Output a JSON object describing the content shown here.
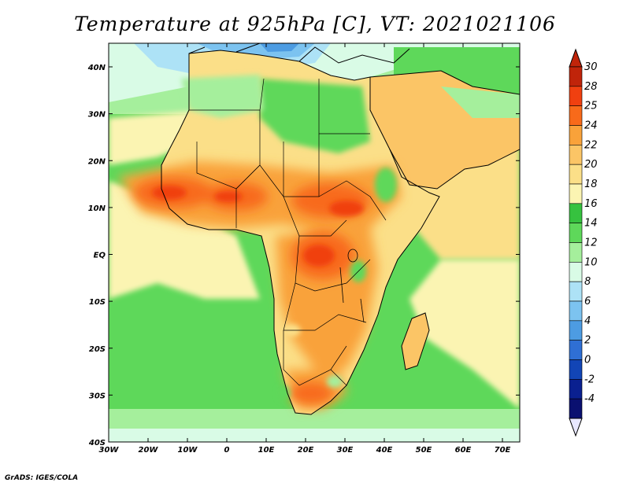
{
  "title": "Temperature at 925hPa [C], VT: 2021021106",
  "credit": "GrADS: IGES/COLA",
  "lon_ticks": [
    "30W",
    "20W",
    "10W",
    "0",
    "10E",
    "20E",
    "30E",
    "40E",
    "50E",
    "60E",
    "70E"
  ],
  "lat_ticks": [
    "40N",
    "30N",
    "20N",
    "10N",
    "EQ",
    "10S",
    "20S",
    "30S",
    "40S"
  ],
  "colorbar": {
    "labels": [
      "30",
      "28",
      "25",
      "24",
      "22",
      "20",
      "18",
      "16",
      "14",
      "12",
      "10",
      "8",
      "6",
      "4",
      "2",
      "0",
      "-2",
      "-4"
    ],
    "colors": [
      "#c0240a",
      "#f04010",
      "#f86a1a",
      "#f9a23a",
      "#fbc566",
      "#fbdf88",
      "#fbf4b2",
      "#36c23f",
      "#5ed85a",
      "#a5ef9c",
      "#d9fbe6",
      "#ade2f6",
      "#7cc3f0",
      "#4d9ce2",
      "#2f6fd4",
      "#1245b6",
      "#0a2090",
      "#0a1070"
    ],
    "top_cap_color": "#c0240a",
    "bottom_cap_color": "#e8e8ff"
  },
  "colors": {
    "ocean_south": "#5ed85a",
    "ocean_north": "#7cc3f0",
    "hot": "#f04010",
    "warm": "#fbc566"
  }
}
